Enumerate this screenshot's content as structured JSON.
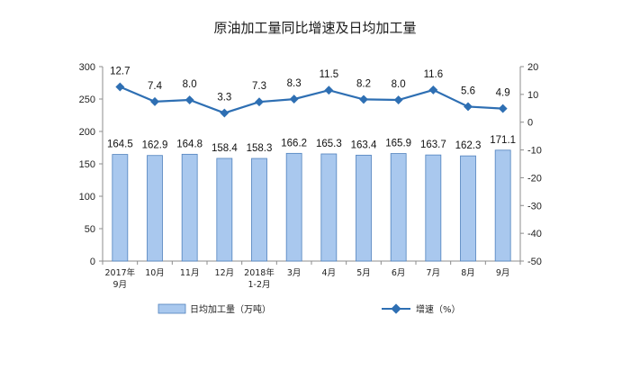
{
  "chart_data": {
    "type": "bar+line",
    "title": "原油加工量同比增速及日均加工量",
    "categories": [
      [
        "2017年",
        "9月"
      ],
      [
        "10月"
      ],
      [
        "11月"
      ],
      [
        "12月"
      ],
      [
        "2018年",
        "1-2月"
      ],
      [
        "3月"
      ],
      [
        "4月"
      ],
      [
        "5月"
      ],
      [
        "6月"
      ],
      [
        "7月"
      ],
      [
        "8月"
      ],
      [
        "9月"
      ]
    ],
    "series": [
      {
        "name": "日均加工量（万吨）",
        "type": "bar",
        "axis": "left",
        "values": [
          164.5,
          162.9,
          164.8,
          158.4,
          158.3,
          166.2,
          165.3,
          163.4,
          165.9,
          163.7,
          162.3,
          171.1
        ],
        "labels": [
          "164.5",
          "162.9",
          "164.8",
          "158.4",
          "158.3",
          "166.2",
          "165.3",
          "163.4",
          "165.9",
          "163.7",
          "162.3",
          "171.1"
        ],
        "color": "#a9c8ee"
      },
      {
        "name": "增速（%）",
        "type": "line",
        "axis": "right",
        "values": [
          12.7,
          7.4,
          8.0,
          3.3,
          7.3,
          8.3,
          11.5,
          8.2,
          8.0,
          11.6,
          5.6,
          4.9
        ],
        "labels": [
          "12.7",
          "7.4",
          "8.0",
          "3.3",
          "7.3",
          "8.3",
          "11.5",
          "8.2",
          "8.0",
          "11.6",
          "5.6",
          "4.9"
        ],
        "color": "#2e6fb3"
      }
    ],
    "y_left": {
      "min": 0,
      "max": 300,
      "ticks": [
        "0",
        "50",
        "100",
        "150",
        "200",
        "250",
        "300"
      ]
    },
    "y_right": {
      "min": -50,
      "max": 20,
      "ticks": [
        "-50",
        "-40",
        "-30",
        "-20",
        "-10",
        "0",
        "10",
        "20"
      ]
    },
    "grid": false,
    "legend_position": "bottom"
  }
}
